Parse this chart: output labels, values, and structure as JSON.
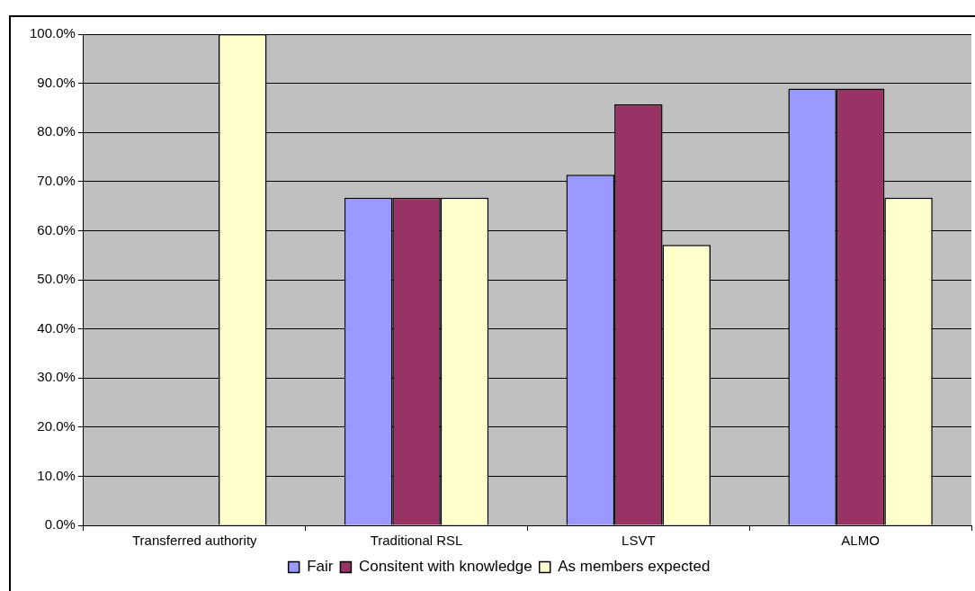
{
  "chart_data": {
    "type": "bar",
    "categories": [
      "Transferred authority",
      "Traditional RSL",
      "LSVT",
      "ALMO"
    ],
    "series": [
      {
        "name": "Fair",
        "color": "#9999ff",
        "values": [
          null,
          66.7,
          71.4,
          88.9
        ]
      },
      {
        "name": "Consitent with knowledge",
        "color": "#993366",
        "values": [
          null,
          66.7,
          85.7,
          88.9
        ]
      },
      {
        "name": "As members expected",
        "color": "#ffffcc",
        "values": [
          100,
          66.7,
          57.1,
          66.7
        ]
      }
    ],
    "ylim": [
      0,
      100
    ],
    "yticks": [
      {
        "value": 0,
        "label": "0.0%"
      },
      {
        "value": 10,
        "label": "10.0%"
      },
      {
        "value": 20,
        "label": "20.0%"
      },
      {
        "value": 30,
        "label": "30.0%"
      },
      {
        "value": 40,
        "label": "40.0%"
      },
      {
        "value": 50,
        "label": "50.0%"
      },
      {
        "value": 60,
        "label": "60.0%"
      },
      {
        "value": 70,
        "label": "70.0%"
      },
      {
        "value": 80,
        "label": "80.0%"
      },
      {
        "value": 90,
        "label": "90.0%"
      },
      {
        "value": 100,
        "label": "100.0%"
      }
    ],
    "grid": "y",
    "legend": "bottom"
  }
}
